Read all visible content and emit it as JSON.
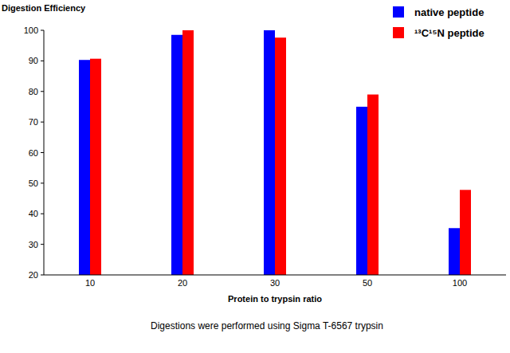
{
  "chart_data": {
    "type": "bar",
    "y_label": "Digestion Efficiency",
    "x_label": "Protein to trypsin ratio",
    "annotations": [
      "Digestions were performed using Sigma T-6567 trypsin"
    ],
    "categories": [
      "10",
      "20",
      "30",
      "50",
      "100"
    ],
    "series": [
      {
        "name": "native peptide",
        "color": "#0000ff",
        "values": [
          90.3,
          98.5,
          100,
          75,
          35.3
        ]
      },
      {
        "name": "¹³C¹⁵N peptide",
        "color": "#ff0000",
        "values": [
          90.7,
          100,
          97.6,
          79,
          47.8
        ]
      }
    ],
    "ylim": [
      20,
      100
    ],
    "yticks": [
      20,
      30,
      40,
      50,
      60,
      70,
      80,
      90,
      100
    ],
    "grid": false,
    "legend": "top-right"
  }
}
